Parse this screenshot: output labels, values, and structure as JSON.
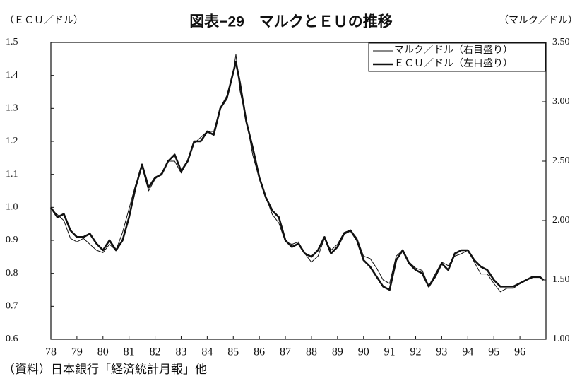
{
  "chart_data": {
    "type": "line",
    "title": "図表−29　マルクとＥＵの推移",
    "y_label": "（ＥＣＵ／ドル）",
    "y2_label": "（マルク／ドル）",
    "source": "（資料）日本銀行「経済統計月報」他",
    "x": [
      78,
      78.25,
      78.5,
      78.75,
      79,
      79.25,
      79.5,
      79.75,
      80,
      80.25,
      80.5,
      80.75,
      81,
      81.25,
      81.5,
      81.75,
      82,
      82.25,
      82.5,
      82.75,
      83,
      83.25,
      83.5,
      83.75,
      84,
      84.25,
      84.5,
      84.75,
      85,
      85.1,
      85.25,
      85.5,
      85.75,
      86,
      86.25,
      86.5,
      86.75,
      87,
      87.25,
      87.5,
      87.75,
      88,
      88.25,
      88.5,
      88.75,
      89,
      89.25,
      89.5,
      89.75,
      90,
      90.25,
      90.5,
      90.75,
      91,
      91.25,
      91.5,
      91.75,
      92,
      92.25,
      92.5,
      92.75,
      93,
      93.25,
      93.5,
      93.75,
      94,
      94.25,
      94.5,
      94.75,
      95,
      95.25,
      95.5,
      95.75,
      96,
      96.25,
      96.5,
      96.75,
      96.9
    ],
    "series": [
      {
        "name": "マルク／ドル（右目盛り）",
        "color": "#111111",
        "width": 1,
        "axis": "y2",
        "values": [
          2.1,
          2.05,
          2.0,
          1.85,
          1.82,
          1.85,
          1.8,
          1.75,
          1.73,
          1.8,
          1.75,
          1.9,
          2.1,
          2.3,
          2.45,
          2.25,
          2.35,
          2.4,
          2.5,
          2.5,
          2.4,
          2.5,
          2.65,
          2.7,
          2.75,
          2.75,
          2.95,
          3.05,
          3.25,
          3.4,
          3.1,
          2.85,
          2.55,
          2.35,
          2.2,
          2.05,
          1.98,
          1.82,
          1.8,
          1.82,
          1.72,
          1.65,
          1.7,
          1.85,
          1.75,
          1.8,
          1.9,
          1.92,
          1.85,
          1.7,
          1.68,
          1.6,
          1.5,
          1.47,
          1.7,
          1.75,
          1.65,
          1.6,
          1.58,
          1.45,
          1.55,
          1.65,
          1.62,
          1.7,
          1.72,
          1.75,
          1.65,
          1.55,
          1.55,
          1.47,
          1.4,
          1.43,
          1.43,
          1.47,
          1.5,
          1.52,
          1.52,
          1.5
        ]
      },
      {
        "name": "ＥＣＵ／ドル（左目盛り）",
        "color": "#111111",
        "width": 2.6,
        "values": [
          1.0,
          0.97,
          0.98,
          0.93,
          0.91,
          0.91,
          0.92,
          0.89,
          0.87,
          0.9,
          0.87,
          0.9,
          0.97,
          1.06,
          1.13,
          1.06,
          1.09,
          1.1,
          1.14,
          1.16,
          1.11,
          1.14,
          1.2,
          1.2,
          1.23,
          1.22,
          1.3,
          1.33,
          1.41,
          1.44,
          1.38,
          1.26,
          1.18,
          1.09,
          1.03,
          0.99,
          0.97,
          0.9,
          0.88,
          0.89,
          0.86,
          0.85,
          0.87,
          0.91,
          0.86,
          0.88,
          0.92,
          0.93,
          0.9,
          0.84,
          0.82,
          0.79,
          0.76,
          0.75,
          0.84,
          0.87,
          0.83,
          0.81,
          0.8,
          0.76,
          0.79,
          0.83,
          0.81,
          0.86,
          0.87,
          0.87,
          0.84,
          0.82,
          0.81,
          0.78,
          0.76,
          0.76,
          0.76,
          0.77,
          0.78,
          0.79,
          0.79,
          0.78
        ]
      }
    ],
    "xlim": [
      78,
      97
    ],
    "xticks": [
      78,
      79,
      80,
      81,
      82,
      83,
      84,
      85,
      86,
      87,
      88,
      89,
      90,
      91,
      92,
      93,
      94,
      95,
      96
    ],
    "ylim": [
      0.6,
      1.5
    ],
    "yticks": [
      0.6,
      0.7,
      0.8,
      0.9,
      {
        "value": 1,
        "label": "1.0"
      },
      1.1,
      1.2,
      1.3,
      1.4,
      1.5
    ],
    "y2lim": [
      1,
      3.5
    ],
    "y2ticks": [
      {
        "value": 1,
        "label": "1.00"
      },
      {
        "value": 1.5,
        "label": "1.50"
      },
      {
        "value": 2,
        "label": "2.00"
      },
      {
        "value": 2.5,
        "label": "2.50"
      },
      {
        "value": 3,
        "label": "3.00"
      },
      {
        "value": 3.5,
        "label": "3.50"
      }
    ],
    "legend": "upper right"
  }
}
